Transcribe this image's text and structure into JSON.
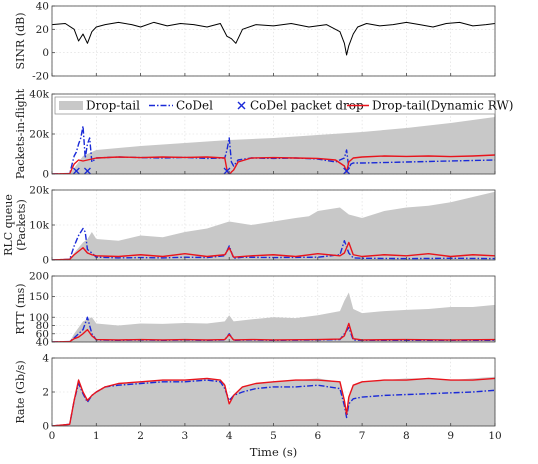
{
  "chart_data": {
    "type": "line",
    "xlabel": "Time (s)",
    "xlim": [
      0,
      10
    ],
    "x_ticks": [
      "0",
      "1",
      "2",
      "3",
      "4",
      "5",
      "6",
      "7",
      "8",
      "9",
      "10"
    ],
    "grid": true,
    "legend": {
      "placement": "top-right of second panel",
      "entries": [
        "Drop-tail",
        "CoDel",
        "CoDel packet drop",
        "Drop-tail(Dynamic RW)"
      ]
    },
    "colors": {
      "drop_tail": "#c8c8c8",
      "codel": "#1a2ad8",
      "codel_drop": "#1a2ad8",
      "dynamic_rw": "#e8141c",
      "sinr": "#000000"
    },
    "panels": [
      {
        "id": "sinr",
        "ylabel": "SINR (dB)",
        "ylim": [
          -20,
          40
        ],
        "y_ticks": [
          "-20",
          "0",
          "20",
          "40"
        ],
        "series": [
          {
            "name": "",
            "style": "black line",
            "x": [
              0,
              0.3,
              0.5,
              0.6,
              0.7,
              0.8,
              0.9,
              1.0,
              1.2,
              1.5,
              1.8,
              2.0,
              2.3,
              2.6,
              2.9,
              3.2,
              3.5,
              3.8,
              3.95,
              4.05,
              4.15,
              4.3,
              4.6,
              5.0,
              5.4,
              5.8,
              6.2,
              6.5,
              6.6,
              6.65,
              6.7,
              6.8,
              6.9,
              7.1,
              7.4,
              7.7,
              8.0,
              8.3,
              8.6,
              8.9,
              9.2,
              9.5,
              9.8,
              10.0
            ],
            "y": [
              24,
              25,
              20,
              10,
              16,
              8,
              18,
              22,
              24,
              26,
              24,
              22,
              26,
              23,
              25,
              24,
              22,
              25,
              14,
              12,
              8,
              20,
              24,
              23,
              25,
              22,
              24,
              18,
              8,
              -2,
              6,
              16,
              22,
              25,
              23,
              24,
              26,
              24,
              22,
              25,
              26,
              23,
              24,
              25
            ]
          }
        ]
      },
      {
        "id": "packets_in_flight",
        "ylabel": "Packets-in-flight",
        "ylim": [
          0,
          40000
        ],
        "y_ticks": [
          "0",
          "20k",
          "40k"
        ],
        "series": [
          {
            "name": "Drop-tail",
            "style": "gray area",
            "x": [
              0,
              0.4,
              0.5,
              0.7,
              1,
              2,
              3,
              4,
              5,
              6,
              7,
              8,
              9,
              10
            ],
            "y": [
              0,
              100,
              3000,
              9000,
              12000,
              14000,
              15500,
              17000,
              18000,
              19500,
              21000,
              23000,
              25500,
              28500
            ]
          },
          {
            "name": "CoDel",
            "style": "blue dash-dot line",
            "x": [
              0,
              0.4,
              0.5,
              0.55,
              0.6,
              0.65,
              0.7,
              0.75,
              0.8,
              0.85,
              0.9,
              1.0,
              1.5,
              2,
              2.5,
              3,
              3.5,
              3.9,
              3.95,
              4.0,
              4.05,
              4.1,
              4.2,
              4.5,
              5,
              5.5,
              6,
              6.4,
              6.6,
              6.65,
              6.7,
              6.75,
              6.8,
              7,
              8,
              9,
              10
            ],
            "y": [
              0,
              200,
              9000,
              11000,
              15000,
              18000,
              24000,
              8000,
              15000,
              18000,
              6000,
              8000,
              8500,
              8200,
              8000,
              8300,
              7800,
              8000,
              12000,
              18000,
              6000,
              4000,
              7000,
              8000,
              7800,
              8000,
              7500,
              6000,
              8000,
              12000,
              3000,
              5000,
              5500,
              5500,
              6000,
              6500,
              7000
            ]
          },
          {
            "name": "Drop-tail(Dynamic RW)",
            "style": "red line",
            "x": [
              0,
              0.4,
              0.5,
              0.6,
              0.7,
              0.8,
              1,
              1.5,
              2,
              2.5,
              3,
              3.5,
              3.9,
              3.95,
              4.0,
              4.05,
              4.1,
              4.2,
              4.5,
              5,
              5.5,
              6,
              6.4,
              6.6,
              6.65,
              6.7,
              6.8,
              7,
              7.5,
              8,
              8.5,
              9,
              9.5,
              10
            ],
            "y": [
              0,
              200,
              5000,
              7000,
              6500,
              7000,
              8000,
              8500,
              8200,
              8500,
              8300,
              8500,
              8000,
              2000,
              -500,
              1000,
              2000,
              6000,
              8000,
              8200,
              8000,
              7800,
              7000,
              4000,
              1000,
              6000,
              8000,
              8500,
              9000,
              8800,
              9000,
              8700,
              9000,
              9500
            ]
          },
          {
            "name": "CoDel packet drop",
            "style": "blue x markers",
            "x": [
              0.55,
              0.8,
              3.95,
              6.65
            ],
            "y": [
              0,
              0,
              0,
              0
            ]
          }
        ]
      },
      {
        "id": "rlc_queue",
        "ylabel": "RLC queue",
        "ylabel2": "(Packets)",
        "ylim": [
          0,
          20000
        ],
        "y_ticks": [
          "0",
          "10k",
          "20k"
        ],
        "series": [
          {
            "name": "Drop-tail",
            "style": "gray area",
            "x": [
              0,
              0.4,
              0.5,
              0.7,
              0.8,
              0.9,
              1,
              1.5,
              2,
              2.5,
              3,
              3.5,
              4,
              4.5,
              5,
              5.5,
              5.8,
              6,
              6.5,
              6.7,
              7,
              7.5,
              8,
              8.5,
              9,
              9.5,
              10
            ],
            "y": [
              0,
              200,
              2000,
              5000,
              6000,
              8000,
              6000,
              5500,
              7000,
              6500,
              8000,
              9000,
              11000,
              10000,
              11000,
              12000,
              12500,
              14000,
              15000,
              13000,
              12000,
              14000,
              15000,
              15500,
              16500,
              18000,
              19500
            ]
          },
          {
            "name": "CoDel",
            "style": "blue dash-dot line",
            "x": [
              0,
              0.4,
              0.5,
              0.6,
              0.7,
              0.75,
              0.8,
              0.9,
              1.0,
              1.5,
              2,
              2.5,
              3,
              3.5,
              3.9,
              4.0,
              4.1,
              4.3,
              5,
              6,
              6.5,
              6.6,
              6.7,
              6.8,
              7,
              8,
              9,
              10
            ],
            "y": [
              0,
              200,
              4000,
              7000,
              9000,
              8000,
              3000,
              2000,
              800,
              600,
              700,
              600,
              800,
              700,
              1200,
              4000,
              500,
              800,
              700,
              800,
              1500,
              5500,
              2000,
              600,
              500,
              400,
              500,
              400
            ]
          },
          {
            "name": "Drop-tail(Dynamic RW)",
            "style": "red line",
            "x": [
              0,
              0.4,
              0.5,
              0.6,
              0.7,
              0.8,
              0.9,
              1,
              1.5,
              2,
              2.5,
              3,
              3.5,
              3.9,
              4.0,
              4.1,
              4.5,
              5,
              5.5,
              6,
              6.5,
              6.6,
              6.7,
              6.8,
              7,
              7.5,
              8,
              8.5,
              9,
              9.5,
              10
            ],
            "y": [
              0,
              200,
              1500,
              2500,
              3500,
              2000,
              1500,
              1200,
              1000,
              1500,
              1000,
              1800,
              1000,
              1500,
              3500,
              800,
              1200,
              1500,
              1000,
              1800,
              1200,
              2000,
              5000,
              1500,
              1000,
              1500,
              1200,
              1800,
              1000,
              1500,
              1200
            ]
          }
        ]
      },
      {
        "id": "rtt",
        "ylabel": "RTT (ms)",
        "ylim": [
          40,
          200
        ],
        "y_ticks": [
          "40",
          "60",
          "80",
          "100",
          "150",
          "200"
        ],
        "series": [
          {
            "name": "Drop-tail",
            "style": "gray area",
            "x": [
              0,
              0.4,
              0.5,
              0.6,
              0.7,
              0.8,
              0.9,
              1,
              1.5,
              2,
              2.5,
              3,
              3.5,
              3.9,
              4.0,
              4.1,
              4.5,
              5,
              5.5,
              6,
              6.5,
              6.6,
              6.7,
              6.8,
              7,
              7.5,
              8,
              8.5,
              9,
              9.5,
              10
            ],
            "y": [
              40,
              41,
              60,
              75,
              90,
              95,
              100,
              85,
              80,
              85,
              84,
              86,
              85,
              90,
              105,
              90,
              95,
              100,
              98,
              105,
              115,
              140,
              160,
              120,
              110,
              115,
              118,
              120,
              125,
              125,
              130
            ]
          },
          {
            "name": "CoDel",
            "style": "blue dash-dot line",
            "x": [
              0,
              0.4,
              0.5,
              0.6,
              0.7,
              0.8,
              0.9,
              1,
              1.5,
              2,
              2.5,
              3,
              3.5,
              3.9,
              4.0,
              4.1,
              4.5,
              5,
              6,
              6.5,
              6.6,
              6.7,
              6.8,
              7,
              8,
              9,
              10
            ],
            "y": [
              40,
              41,
              50,
              60,
              70,
              100,
              60,
              45,
              44,
              45,
              44,
              45,
              44,
              45,
              60,
              44,
              45,
              44,
              45,
              46,
              60,
              75,
              45,
              44,
              44,
              44,
              44
            ]
          },
          {
            "name": "Drop-tail(Dynamic RW)",
            "style": "red line",
            "x": [
              0,
              0.4,
              0.5,
              0.6,
              0.7,
              0.8,
              0.9,
              1,
              1.5,
              2,
              2.5,
              3,
              3.5,
              3.9,
              4.0,
              4.1,
              4.5,
              5,
              6,
              6.5,
              6.6,
              6.7,
              6.8,
              7,
              8,
              9,
              10
            ],
            "y": [
              40,
              41,
              48,
              52,
              60,
              70,
              55,
              46,
              45,
              46,
              45,
              46,
              45,
              46,
              58,
              45,
              46,
              45,
              46,
              47,
              55,
              85,
              48,
              45,
              46,
              45,
              46
            ]
          }
        ]
      },
      {
        "id": "rate",
        "ylabel": "Rate (Gb/s)",
        "ylim": [
          0,
          4
        ],
        "y_ticks": [
          "0",
          "2",
          "4"
        ],
        "series": [
          {
            "name": "Drop-tail",
            "style": "gray area",
            "x": [
              0,
              0.4,
              0.5,
              0.6,
              0.7,
              0.8,
              0.9,
              1.0,
              1.2,
              1.5,
              2,
              2.5,
              3,
              3.5,
              3.8,
              3.9,
              4.0,
              4.1,
              4.3,
              4.6,
              5,
              5.5,
              6,
              6.5,
              6.6,
              6.65,
              6.7,
              6.8,
              7,
              7.5,
              8,
              8.5,
              9,
              9.5,
              10
            ],
            "y": [
              0,
              0.1,
              1.5,
              2.8,
              2.0,
              1.6,
              1.8,
              2.0,
              2.3,
              2.5,
              2.6,
              2.7,
              2.7,
              2.8,
              2.7,
              2.5,
              1.2,
              1.8,
              2.3,
              2.5,
              2.6,
              2.7,
              2.8,
              2.6,
              1.6,
              0.8,
              1.8,
              2.4,
              2.6,
              2.7,
              2.8,
              2.8,
              2.7,
              2.8,
              2.9
            ]
          },
          {
            "name": "CoDel",
            "style": "blue dash-dot line",
            "x": [
              0,
              0.4,
              0.5,
              0.6,
              0.7,
              0.8,
              0.9,
              1.0,
              1.2,
              1.5,
              2,
              2.5,
              3,
              3.5,
              3.8,
              3.9,
              4.0,
              4.1,
              4.3,
              4.6,
              5,
              5.5,
              6,
              6.5,
              6.6,
              6.65,
              6.7,
              6.8,
              7,
              7.5,
              8,
              8.5,
              9,
              9.5,
              10
            ],
            "y": [
              0,
              0.1,
              1.5,
              2.5,
              1.9,
              1.4,
              1.8,
              2.0,
              2.3,
              2.4,
              2.5,
              2.6,
              2.6,
              2.7,
              2.6,
              2.2,
              1.5,
              1.8,
              2.0,
              2.2,
              2.3,
              2.3,
              2.4,
              2.2,
              1.2,
              0.5,
              1.3,
              1.6,
              1.7,
              1.8,
              1.85,
              1.9,
              1.95,
              2.0,
              2.1
            ]
          },
          {
            "name": "Drop-tail(Dynamic RW)",
            "style": "red line",
            "x": [
              0,
              0.4,
              0.5,
              0.6,
              0.7,
              0.8,
              0.9,
              1.0,
              1.2,
              1.5,
              2,
              2.5,
              3,
              3.5,
              3.8,
              3.9,
              4.0,
              4.1,
              4.3,
              4.6,
              5,
              5.5,
              6,
              6.5,
              6.6,
              6.65,
              6.7,
              6.8,
              7,
              7.5,
              8,
              8.5,
              9,
              9.5,
              10
            ],
            "y": [
              0,
              0.1,
              1.5,
              2.7,
              2.0,
              1.5,
              1.8,
              2.0,
              2.3,
              2.5,
              2.6,
              2.7,
              2.7,
              2.8,
              2.7,
              2.4,
              1.3,
              1.8,
              2.3,
              2.5,
              2.6,
              2.7,
              2.7,
              2.6,
              1.5,
              0.7,
              1.7,
              2.4,
              2.6,
              2.7,
              2.7,
              2.8,
              2.7,
              2.7,
              2.8
            ]
          }
        ]
      }
    ]
  }
}
